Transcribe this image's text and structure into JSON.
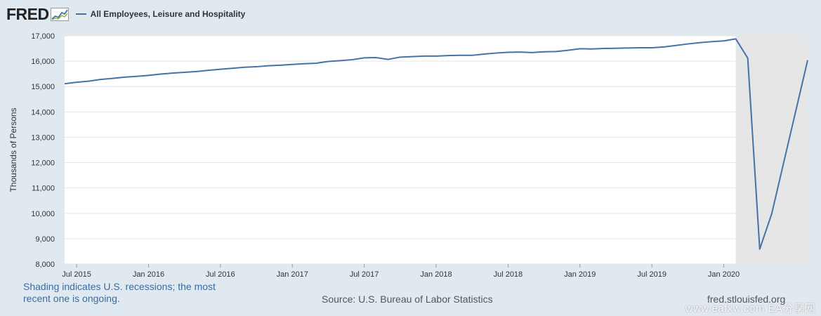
{
  "header": {
    "logo": "FRED",
    "series_label": "All Employees, Leisure and Hospitality"
  },
  "colors": {
    "line": "#4572a7",
    "recession_shade": "#e6e6e6",
    "page_bg": "#e1e9f0",
    "plot_bg": "#ffffff"
  },
  "chart_data": {
    "type": "line",
    "ylabel": "Thousands of Persons",
    "ylim": [
      8000,
      17000
    ],
    "yticks": [
      8000,
      9000,
      10000,
      11000,
      12000,
      13000,
      14000,
      15000,
      16000,
      17000
    ],
    "ytick_labels": [
      "8,000",
      "9,000",
      "10,000",
      "11,000",
      "12,000",
      "13,000",
      "14,000",
      "15,000",
      "16,000",
      "17,000"
    ],
    "xlim": [
      "2015-06",
      "2020-08"
    ],
    "xticks": [
      "2015-07",
      "2016-01",
      "2016-07",
      "2017-01",
      "2017-07",
      "2018-01",
      "2018-07",
      "2019-01",
      "2019-07",
      "2020-01"
    ],
    "xtick_labels": [
      "Jul 2015",
      "Jan 2016",
      "Jul 2016",
      "Jan 2017",
      "Jul 2017",
      "Jan 2018",
      "Jul 2018",
      "Jan 2019",
      "Jul 2019",
      "Jan 2020"
    ],
    "recession": {
      "start": "2020-02",
      "end": "2020-08"
    },
    "grid": true,
    "series": [
      {
        "x": [
          "2015-06",
          "2015-07",
          "2015-08",
          "2015-09",
          "2015-10",
          "2015-11",
          "2015-12",
          "2016-01",
          "2016-02",
          "2016-03",
          "2016-04",
          "2016-05",
          "2016-06",
          "2016-07",
          "2016-08",
          "2016-09",
          "2016-10",
          "2016-11",
          "2016-12",
          "2017-01",
          "2017-02",
          "2017-03",
          "2017-04",
          "2017-05",
          "2017-06",
          "2017-07",
          "2017-08",
          "2017-09",
          "2017-10",
          "2017-11",
          "2017-12",
          "2018-01",
          "2018-02",
          "2018-03",
          "2018-04",
          "2018-05",
          "2018-06",
          "2018-07",
          "2018-08",
          "2018-09",
          "2018-10",
          "2018-11",
          "2018-12",
          "2019-01",
          "2019-02",
          "2019-03",
          "2019-04",
          "2019-05",
          "2019-06",
          "2019-07",
          "2019-08",
          "2019-09",
          "2019-10",
          "2019-11",
          "2019-12",
          "2020-01",
          "2020-02",
          "2020-03",
          "2020-04",
          "2020-05",
          "2020-06",
          "2020-07"
        ],
        "values": [
          15110,
          15170,
          15210,
          15280,
          15320,
          15370,
          15400,
          15440,
          15490,
          15530,
          15560,
          15590,
          15640,
          15680,
          15720,
          15760,
          15780,
          15820,
          15840,
          15870,
          15900,
          15920,
          15990,
          16020,
          16060,
          16130,
          16140,
          16070,
          16160,
          16180,
          16200,
          16200,
          16220,
          16230,
          16230,
          16280,
          16320,
          16350,
          16360,
          16340,
          16370,
          16380,
          16430,
          16490,
          16480,
          16500,
          16510,
          16520,
          16530,
          16530,
          16560,
          16620,
          16680,
          16730,
          16770,
          16800,
          16880,
          16120,
          8590,
          9980,
          12000,
          null
        ]
      }
    ]
  },
  "footer": {
    "note": "Shading indicates U.S. recessions; the most recent one is ongoing.",
    "source": "Source: U.S. Bureau of Labor Statistics",
    "credit": "fred.stlouisfed.org"
  },
  "watermark": "www.eafxw.com  EA分享网"
}
